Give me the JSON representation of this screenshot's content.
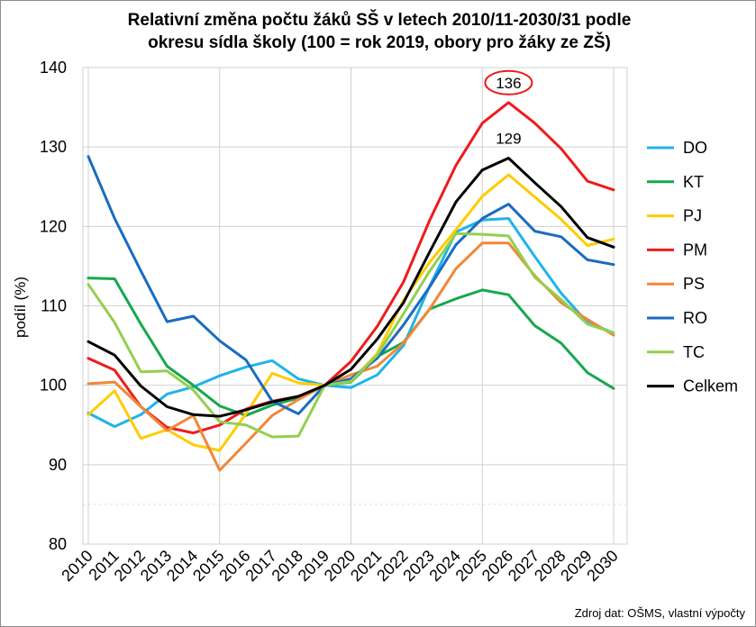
{
  "chart_data": {
    "type": "line",
    "title": "Relativní změna počtu žáků SŠ v letech 2010/11-2030/31 podle\nokresu sídla školy (100 = rok 2019, obory pro žáky ze ZŠ)",
    "ylabel": "podíl (%)",
    "xlabel": "",
    "ylim": [
      80,
      140
    ],
    "yticks": [
      80,
      90,
      100,
      110,
      120,
      130,
      140
    ],
    "grid": true,
    "legend_position": "right",
    "source": "Zdroj dat: OŠMS, vlastní výpočty",
    "x": [
      "2010",
      "2011",
      "2012",
      "2013",
      "2014",
      "2015",
      "2016",
      "2017",
      "2018",
      "2019",
      "2020",
      "2021",
      "2022",
      "2023",
      "2024",
      "2025",
      "2026",
      "2027",
      "2028",
      "2029",
      "2030"
    ],
    "series": [
      {
        "name": "DO",
        "color": "#1fb4e8",
        "values": [
          96.5,
          94.8,
          96.3,
          98.9,
          99.8,
          101.2,
          102.3,
          103.1,
          100.8,
          100.0,
          99.7,
          101.3,
          105.0,
          112.5,
          119.3,
          120.8,
          121.0,
          116.2,
          111.6,
          107.9,
          106.6
        ]
      },
      {
        "name": "KT",
        "color": "#17a84d",
        "values": [
          113.5,
          113.4,
          107.7,
          102.4,
          100.0,
          97.4,
          96.2,
          97.5,
          98.4,
          100.0,
          100.4,
          103.6,
          105.4,
          109.6,
          110.9,
          112.0,
          111.4,
          107.5,
          105.3,
          101.6,
          99.6
        ]
      },
      {
        "name": "PJ",
        "color": "#ffcc00",
        "values": [
          96.3,
          99.3,
          93.3,
          94.4,
          92.5,
          91.8,
          96.4,
          101.5,
          100.3,
          100.0,
          100.5,
          104.0,
          110.7,
          115.5,
          119.6,
          123.8,
          126.5,
          123.7,
          120.9,
          117.6,
          118.4
        ]
      },
      {
        "name": "PM",
        "color": "#ee1c1c",
        "values": [
          103.4,
          101.9,
          97.3,
          94.7,
          94.0,
          95.0,
          97.0,
          98.0,
          98.6,
          100.0,
          103.0,
          107.4,
          113.0,
          120.8,
          127.7,
          133.0,
          135.6,
          133.0,
          129.8,
          125.7,
          124.6
        ]
      },
      {
        "name": "PS",
        "color": "#f0883a",
        "values": [
          100.2,
          100.4,
          97.3,
          94.3,
          96.2,
          89.3,
          92.7,
          96.2,
          98.2,
          100.0,
          101.3,
          102.4,
          105.3,
          109.6,
          114.7,
          117.9,
          117.9,
          113.8,
          110.4,
          108.3,
          106.3
        ]
      },
      {
        "name": "RO",
        "color": "#1a6cbf",
        "values": [
          128.8,
          121.0,
          114.4,
          108.0,
          108.7,
          105.6,
          103.2,
          98.0,
          96.4,
          100.0,
          100.8,
          103.4,
          107.6,
          112.4,
          117.7,
          121.0,
          122.8,
          119.4,
          118.7,
          115.8,
          115.2
        ]
      },
      {
        "name": "TC",
        "color": "#92d050",
        "values": [
          112.7,
          107.9,
          101.7,
          101.8,
          99.4,
          95.4,
          95.0,
          93.5,
          93.6,
          100.0,
          100.5,
          103.8,
          109.0,
          114.4,
          119.1,
          119.0,
          118.8,
          113.6,
          110.8,
          107.7,
          106.6
        ]
      },
      {
        "name": "Celkem",
        "color": "#000000",
        "values": [
          105.5,
          103.8,
          99.9,
          97.3,
          96.3,
          96.1,
          96.9,
          97.9,
          98.6,
          100.0,
          102.0,
          105.8,
          110.4,
          116.8,
          123.1,
          127.1,
          128.6,
          125.5,
          122.5,
          118.6,
          117.4
        ]
      }
    ],
    "annotations": [
      {
        "text": "136",
        "x": "2026",
        "y": 135.6,
        "circled": true,
        "circle_color": "#ee1c1c"
      },
      {
        "text": "129",
        "x": "2026",
        "y": 128.6,
        "circled": false
      }
    ]
  }
}
